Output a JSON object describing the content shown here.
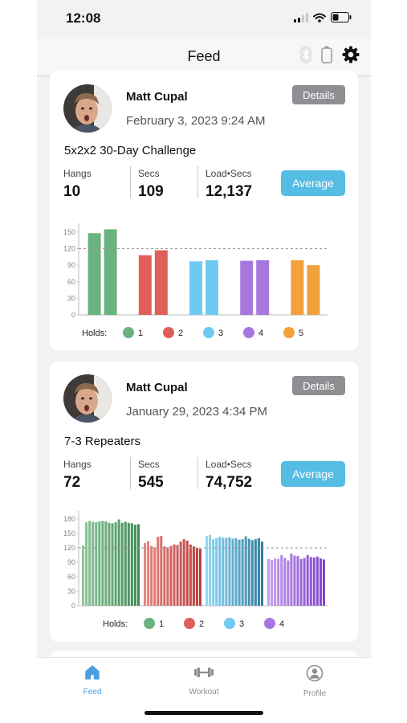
{
  "status_bar": {
    "time": "12:08"
  },
  "header": {
    "title": "Feed"
  },
  "feed": [
    {
      "author": "Matt Cupal",
      "date": "February 3, 2023 9:24 AM",
      "details_label": "Details",
      "workout_title": "5x2x2 30-Day Challenge",
      "stats": [
        {
          "label": "Hangs",
          "value": "10"
        },
        {
          "label": "Secs",
          "value": "109"
        },
        {
          "label": "Load•Secs",
          "value": "12,137"
        }
      ],
      "average_label": "Average",
      "chart_data": {
        "type": "bar",
        "yticks": [
          0,
          30,
          60,
          90,
          120,
          150
        ],
        "ylim": [
          0,
          160
        ],
        "reference_line": 120,
        "legend_title": "Holds:",
        "series": [
          {
            "name": "1",
            "color": "#6ab27f",
            "values": [
              148,
              155
            ]
          },
          {
            "name": "2",
            "color": "#df5f5b",
            "values": [
              108,
              117
            ]
          },
          {
            "name": "3",
            "color": "#6fcaf2",
            "values": [
              97,
              99
            ]
          },
          {
            "name": "4",
            "color": "#a777e0",
            "values": [
              98,
              99
            ]
          },
          {
            "name": "5",
            "color": "#f2a13c",
            "values": [
              99,
              90
            ]
          }
        ]
      }
    },
    {
      "author": "Matt Cupal",
      "date": "January 29, 2023 4:34 PM",
      "details_label": "Details",
      "workout_title": "7-3 Repeaters",
      "stats": [
        {
          "label": "Hangs",
          "value": "72"
        },
        {
          "label": "Secs",
          "value": "545"
        },
        {
          "label": "Load•Secs",
          "value": "74,752"
        }
      ],
      "average_label": "Average",
      "chart_data": {
        "type": "bar",
        "yticks": [
          0,
          30,
          60,
          90,
          120,
          150,
          180
        ],
        "ylim": [
          0,
          190
        ],
        "reference_line": 120,
        "legend_title": "Holds:",
        "series": [
          {
            "name": "1",
            "color": "#6ab27f",
            "colors": [
              "#8cc59b",
              "#3f8a54"
            ],
            "values": [
              125,
              173,
              176,
              174,
              173,
              175,
              176,
              175,
              172,
              171,
              173,
              179,
              172,
              174,
              172,
              171,
              168,
              169
            ]
          },
          {
            "name": "2",
            "color": "#df5f5b",
            "colors": [
              "#ea8582",
              "#b83f3c"
            ],
            "values": [
              130,
              134,
              124,
              121,
              143,
              145,
              123,
              121,
              124,
              127,
              126,
              133,
              138,
              135,
              127,
              123,
              120,
              118
            ]
          },
          {
            "name": "3",
            "color": "#6fcaf2",
            "colors": [
              "#90d8f7",
              "#2f7f9e"
            ],
            "values": [
              145,
              147,
              138,
              140,
              143,
              141,
              140,
              142,
              139,
              140,
              137,
              138,
              144,
              139,
              136,
              138,
              140,
              133
            ]
          },
          {
            "name": "4",
            "color": "#a777e0",
            "colors": [
              "#c39ef0",
              "#8044c8"
            ],
            "values": [
              97,
              95,
              98,
              97,
              105,
              99,
              94,
              108,
              104,
              103,
              97,
              99,
              105,
              101,
              100,
              102,
              98,
              96
            ]
          }
        ]
      }
    }
  ],
  "tabbar": {
    "items": [
      {
        "label": "Feed",
        "icon": "home-icon",
        "active": true
      },
      {
        "label": "Workout",
        "icon": "dumbbell-icon",
        "active": false
      },
      {
        "label": "Profile",
        "icon": "profile-icon",
        "active": false
      }
    ]
  },
  "colors": {
    "accent": "#55bde3",
    "active_tab": "#4a9fe0",
    "details_button": "#8f8f93"
  }
}
